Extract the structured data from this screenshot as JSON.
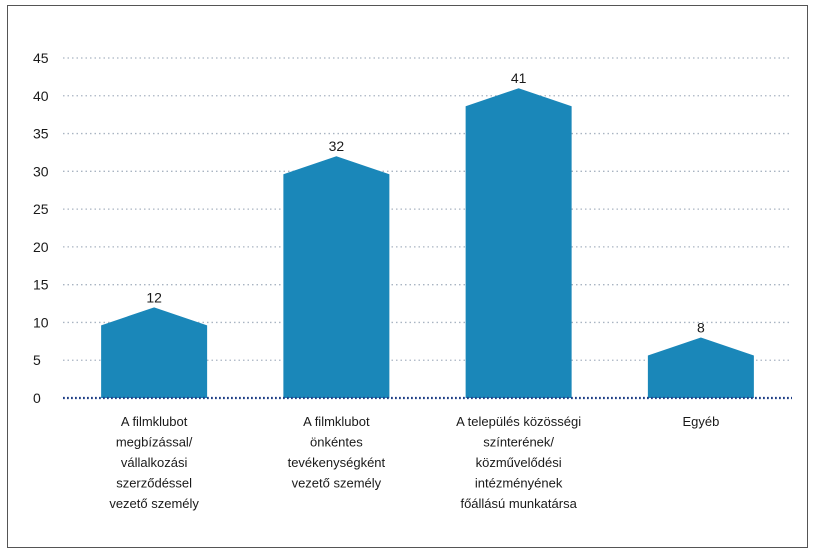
{
  "chart_data": {
    "type": "bar",
    "title": "",
    "xlabel": "",
    "ylabel": "",
    "ylim": [
      0,
      45
    ],
    "yticks": [
      0,
      5,
      10,
      15,
      20,
      25,
      30,
      35,
      40,
      45
    ],
    "grid": true,
    "categories": [
      [
        "A filmklubot",
        "megbízással/",
        "vállalkozási",
        "szerződéssel",
        "vezető személy"
      ],
      [
        "A filmklubot",
        "önkéntes",
        "tevékenységként",
        "vezető személy"
      ],
      [
        "A település közösségi",
        "színterének/",
        "közművelődési",
        "intézményének",
        "főállású munkatársa"
      ],
      [
        "Egyéb"
      ]
    ],
    "values": [
      12,
      32,
      41,
      8
    ],
    "colors": {
      "bar": "#1a87b9",
      "grid": "#a9b4c2",
      "axis": "#1f3f86"
    }
  }
}
